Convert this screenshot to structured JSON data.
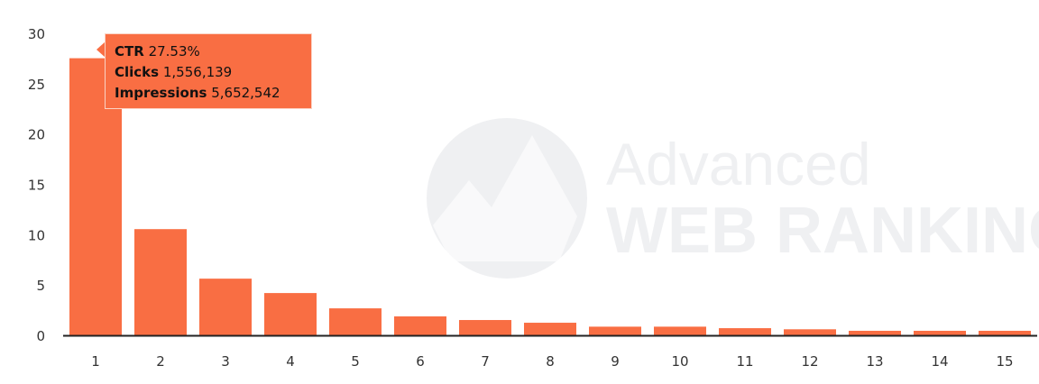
{
  "chart_data": {
    "type": "bar",
    "categories": [
      "1",
      "2",
      "3",
      "4",
      "5",
      "6",
      "7",
      "8",
      "9",
      "10",
      "11",
      "12",
      "13",
      "14",
      "15"
    ],
    "values": [
      27.53,
      10.55,
      5.63,
      4.2,
      2.68,
      1.88,
      1.52,
      1.25,
      0.86,
      0.86,
      0.71,
      0.6,
      0.45,
      0.45,
      0.45
    ],
    "ylim": [
      0,
      30
    ],
    "yticks": [
      "0",
      "5",
      "10",
      "15",
      "20",
      "25",
      "30"
    ],
    "grid": false,
    "bar_color": "#f96e43",
    "tooltip": {
      "ctr_label": "CTR",
      "ctr_value": "27.53%",
      "clicks_label": "Clicks",
      "clicks_value": "1,556,139",
      "impressions_label": "Impressions",
      "impressions_value": "5,652,542"
    }
  },
  "watermark": {
    "line1": "Advanced",
    "line2": "WEB RANKING"
  }
}
